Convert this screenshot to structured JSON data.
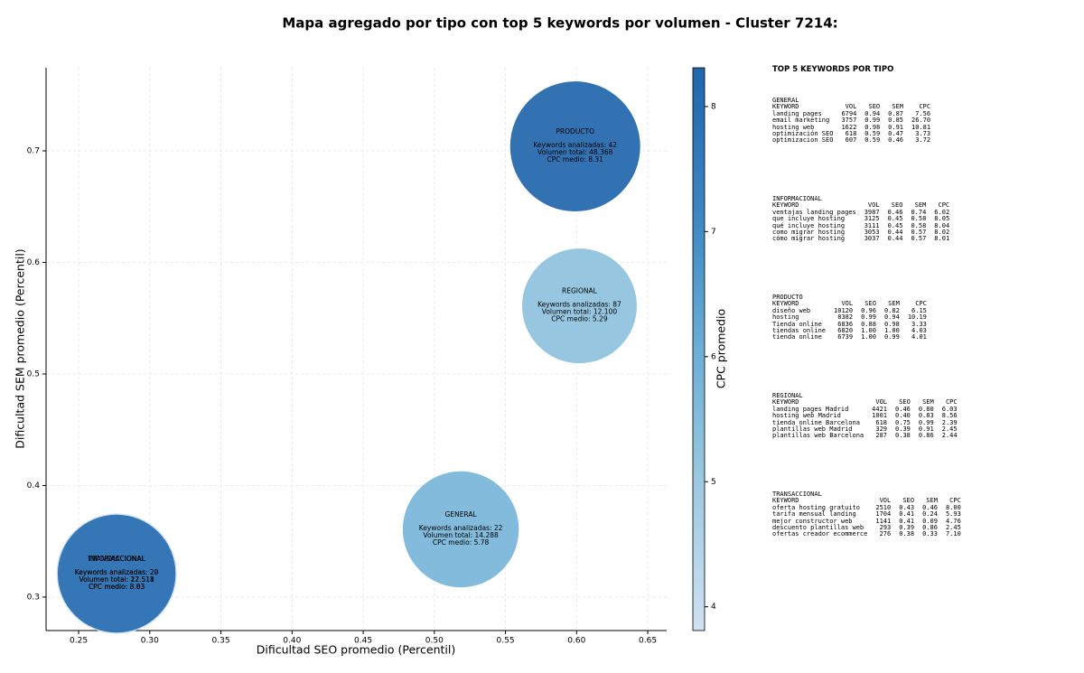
{
  "chart_data": {
    "type": "bubble",
    "title": "Mapa agregado por tipo con top 5 keywords por volumen - Cluster 7214:",
    "xlabel": "Dificultad SEO promedio (Percentil)",
    "ylabel": "Dificultad SEM promedio (Percentil)",
    "colorbar_label": "CPC promedio",
    "xlim": [
      0.2271,
      0.6633
    ],
    "ylim": [
      0.27,
      0.7745
    ],
    "xticks": [
      0.25,
      {
        "value": 0.3,
        "label": "0.30"
      },
      0.35,
      {
        "value": 0.4,
        "label": "0.40"
      },
      0.45,
      {
        "value": 0.5,
        "label": "0.50"
      },
      0.55,
      {
        "value": 0.6,
        "label": "0.60"
      },
      0.65
    ],
    "yticks": [
      0.3,
      0.4,
      0.5,
      0.6,
      0.7
    ],
    "clim": [
      3.81,
      8.31
    ],
    "cticks": [
      4,
      5,
      6,
      7,
      8
    ],
    "colormap": [
      "#d0e1f2",
      "#9ecae1",
      "#6baed6",
      "#3a85c2",
      "#2166ac"
    ],
    "grid": true,
    "points": [
      {
        "name": "TRANSACCIONAL",
        "x": 0.2767,
        "y": 0.321,
        "cpc": 3.83,
        "volume": 22518,
        "labels": [
          "Keywords analizadas: 29",
          "Volumen total: 22.518",
          "CPC medio: 3.83"
        ]
      },
      {
        "name": "INFORMACIONAL",
        "x": 0.2767,
        "y": 0.321,
        "cpc": 8.03,
        "volume": 17511,
        "labels": [
          "Keywords analizadas: 20",
          "Volumen total: 17.511",
          "CPC medio: 8.03"
        ]
      },
      {
        "name": "GENERAL",
        "x": 0.5186,
        "y": 0.3607,
        "cpc": 5.78,
        "volume": 14288,
        "labels": [
          "Keywords analizadas: 22",
          "Volumen total: 14.288",
          "CPC medio: 5.78"
        ]
      },
      {
        "name": "REGIONAL",
        "x": 0.602,
        "y": 0.561,
        "cpc": 5.29,
        "volume": 12100,
        "labels": [
          "Keywords analizadas: 87",
          "Volumen total: 12.100",
          "CPC medio: 5.29"
        ]
      },
      {
        "name": "PRODUCTO",
        "x": 0.599,
        "y": 0.704,
        "cpc": 8.31,
        "volume": 48368,
        "labels": [
          "Keywords analizadas: 42",
          "Volumen total: 48.368",
          "CPC medio: 8.31"
        ]
      }
    ]
  },
  "side_panel": {
    "title": "TOP 5 KEYWORDS POR TIPO",
    "columns": [
      "KEYWORD",
      "VOL",
      "SEO",
      "SEM",
      "CPC"
    ],
    "sections": [
      {
        "name": "GENERAL",
        "rows": [
          [
            "landing pages",
            "6794",
            "0.94",
            "0.87",
            "7.56"
          ],
          [
            "email marketing",
            "3757",
            "0.99",
            "0.85",
            "26.70"
          ],
          [
            "hosting web",
            "1622",
            "0.98",
            "0.91",
            "10.81"
          ],
          [
            "optimización SEO",
            "618",
            "0.59",
            "0.47",
            "3.73"
          ],
          [
            "optimizacion SEO",
            "607",
            "0.59",
            "0.46",
            "3.72"
          ]
        ]
      },
      {
        "name": "INFORMACIONAL",
        "rows": [
          [
            "ventajas landing pages",
            "3987",
            "0.46",
            "0.74",
            "6.02"
          ],
          [
            "que incluye hosting",
            "3125",
            "0.45",
            "0.58",
            "8.05"
          ],
          [
            "qué incluye hosting",
            "3111",
            "0.45",
            "0.58",
            "8.04"
          ],
          [
            "como migrar hosting",
            "3053",
            "0.44",
            "0.57",
            "8.02"
          ],
          [
            "cómo migrar hosting",
            "3037",
            "0.44",
            "0.57",
            "8.01"
          ]
        ]
      },
      {
        "name": "PRODUCTO",
        "rows": [
          [
            "diseño web",
            "10120",
            "0.96",
            "0.82",
            "6.15"
          ],
          [
            "hosting",
            "8382",
            "0.99",
            "0.94",
            "10.19"
          ],
          [
            "Tienda online",
            "6836",
            "0.88",
            "0.98",
            "3.33"
          ],
          [
            "tiendas online",
            "6820",
            "1.00",
            "1.00",
            "4.03"
          ],
          [
            "tienda online",
            "6739",
            "1.00",
            "0.99",
            "4.01"
          ]
        ]
      },
      {
        "name": "REGIONAL",
        "rows": [
          [
            "landing pages Madrid",
            "4421",
            "0.46",
            "0.80",
            "6.03"
          ],
          [
            "hosting web Madrid",
            "1001",
            "0.40",
            "0.83",
            "8.56"
          ],
          [
            "tienda online Barcelona",
            "618",
            "0.75",
            "0.99",
            "2.39"
          ],
          [
            "plantillas web Madrid",
            "329",
            "0.39",
            "0.91",
            "2.45"
          ],
          [
            "plantillas web Barcelona",
            "287",
            "0.38",
            "0.86",
            "2.44"
          ]
        ]
      },
      {
        "name": "TRANSACCIONAL",
        "rows": [
          [
            "oferta hosting gratuito",
            "2510",
            "0.43",
            "0.46",
            "8.00"
          ],
          [
            "tarifa mensual landing",
            "1704",
            "0.41",
            "0.24",
            "5.93"
          ],
          [
            "mejor constructor web",
            "1141",
            "0.41",
            "0.09",
            "4.76"
          ],
          [
            "descuento plantillas web",
            "293",
            "0.39",
            "0.86",
            "2.45"
          ],
          [
            "ofertas creador ecommerce",
            "276",
            "0.38",
            "0.33",
            "7.10"
          ]
        ]
      }
    ]
  }
}
